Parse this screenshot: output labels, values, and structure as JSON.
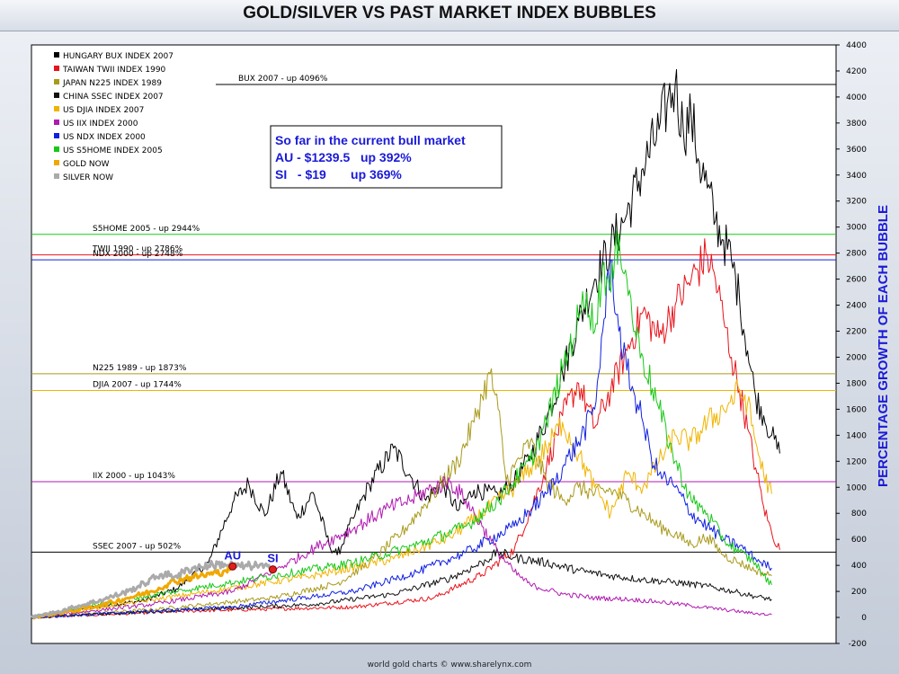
{
  "header": {
    "title": "GOLD/SILVER VS PAST MARKET INDEX BUBBLES"
  },
  "footer": {
    "credit": "world gold charts © www.sharelynx.com"
  },
  "info_box": {
    "line1": "So far in the current bull market",
    "line2": "AU - $1239.5   up 392%",
    "line3": "SI   - $19       up 369%"
  },
  "colors": {
    "hungary": "#000000",
    "taiwan": "#e8141c",
    "japan": "#a89a1c",
    "china": "#111111",
    "djia": "#f0b400",
    "iix": "#b01ab0",
    "ndx": "#1020e0",
    "s5home": "#18c818",
    "gold": "#f0a800",
    "silver": "#aaaaaa",
    "ylabel": "#1a1ad8",
    "markers": "#e02020"
  },
  "chart_data": {
    "type": "line",
    "title": "GOLD/SILVER VS PAST MARKET INDEX BUBBLES",
    "ylabel": "PERCENTAGE GROWTH OF EACH BUBBLE",
    "xlabel": "",
    "ylim": [
      -200,
      4400
    ],
    "yticks": [
      -200,
      0,
      200,
      400,
      600,
      800,
      1000,
      1200,
      1400,
      1600,
      1800,
      2000,
      2200,
      2400,
      2600,
      2800,
      3000,
      3200,
      3400,
      3600,
      3800,
      4000,
      4200,
      4400
    ],
    "x_range": [
      0,
      100
    ],
    "grid": false,
    "legend_position": "top-left",
    "legend": [
      {
        "label": "HUNGARY BUX INDEX 2007",
        "color": "#000000"
      },
      {
        "label": "TAIWAN TWII INDEX 1990",
        "color": "#e8141c"
      },
      {
        "label": "JAPAN N225 INDEX 1989",
        "color": "#a89a1c"
      },
      {
        "label": "CHINA SSEC INDEX 2007",
        "color": "#111111"
      },
      {
        "label": "US DJIA INDEX 2007",
        "color": "#f0b400"
      },
      {
        "label": "US IIX INDEX 2000",
        "color": "#b01ab0"
      },
      {
        "label": "US NDX INDEX 2000",
        "color": "#1020e0"
      },
      {
        "label": "US S5HOME INDEX 2005",
        "color": "#18c818"
      },
      {
        "label": "GOLD NOW",
        "color": "#f0a800"
      },
      {
        "label": "SILVER NOW",
        "color": "#aaaaaa"
      }
    ],
    "reference_lines": [
      {
        "label": "BUX 2007 - up 4096%",
        "value": 4096,
        "color": "#000000"
      },
      {
        "label": "S5HOME 2005 - up 2944%",
        "value": 2944,
        "color": "#18c818"
      },
      {
        "label": "TWII 1990 - up 2786%",
        "value": 2786,
        "color": "#e8141c"
      },
      {
        "label": "NDX 2000 - up 2748%",
        "value": 2748,
        "color": "#1020e0"
      },
      {
        "label": "N225 1989 - up 1873%",
        "value": 1873,
        "color": "#a89a1c"
      },
      {
        "label": "DJIA 2007 - up 1744%",
        "value": 1744,
        "color": "#f0b400"
      },
      {
        "label": "IIX 2000 - up 1043%",
        "value": 1043,
        "color": "#b01ab0"
      },
      {
        "label": "SSEC 2007 - up 502%",
        "value": 502,
        "color": "#000000"
      }
    ],
    "series": [
      {
        "name": "HUNGARY BUX INDEX 2007",
        "color": "#000000",
        "points": [
          [
            0,
            0
          ],
          [
            8,
            80
          ],
          [
            14,
            130
          ],
          [
            18,
            220
          ],
          [
            22,
            420
          ],
          [
            25,
            880
          ],
          [
            27,
            1030
          ],
          [
            29,
            780
          ],
          [
            31,
            1120
          ],
          [
            33,
            760
          ],
          [
            35,
            960
          ],
          [
            37,
            560
          ],
          [
            38,
            480
          ],
          [
            40,
            760
          ],
          [
            42,
            1020
          ],
          [
            45,
            1300
          ],
          [
            47,
            1100
          ],
          [
            49,
            900
          ],
          [
            51,
            1040
          ],
          [
            53,
            820
          ],
          [
            55,
            980
          ],
          [
            58,
            940
          ],
          [
            60,
            1040
          ],
          [
            62,
            1240
          ],
          [
            64,
            1520
          ],
          [
            66,
            1880
          ],
          [
            68,
            2280
          ],
          [
            70,
            2600
          ],
          [
            72,
            2850
          ],
          [
            74,
            3100
          ],
          [
            76,
            3450
          ],
          [
            78,
            3750
          ],
          [
            79,
            3950
          ],
          [
            80,
            4096
          ],
          [
            81,
            3750
          ],
          [
            82,
            3850
          ],
          [
            83,
            3500
          ],
          [
            84,
            3300
          ],
          [
            85,
            3050
          ],
          [
            86,
            2900
          ],
          [
            87,
            2750
          ],
          [
            88,
            2450
          ],
          [
            89,
            2050
          ],
          [
            90,
            1700
          ],
          [
            91,
            1550
          ],
          [
            92,
            1400
          ],
          [
            93,
            1260
          ]
        ]
      },
      {
        "name": "TAIWAN TWII INDEX 1990",
        "color": "#e8141c",
        "points": [
          [
            0,
            0
          ],
          [
            20,
            50
          ],
          [
            40,
            80
          ],
          [
            50,
            150
          ],
          [
            56,
            330
          ],
          [
            60,
            520
          ],
          [
            62,
            820
          ],
          [
            64,
            1150
          ],
          [
            66,
            1550
          ],
          [
            68,
            1800
          ],
          [
            70,
            1460
          ],
          [
            72,
            1750
          ],
          [
            74,
            2050
          ],
          [
            76,
            2350
          ],
          [
            78,
            2150
          ],
          [
            80,
            2400
          ],
          [
            82,
            2600
          ],
          [
            84,
            2786
          ],
          [
            85,
            2600
          ],
          [
            86,
            2300
          ],
          [
            87,
            2000
          ],
          [
            88,
            1750
          ],
          [
            89,
            1450
          ],
          [
            90,
            1150
          ],
          [
            91,
            850
          ],
          [
            92,
            650
          ],
          [
            93,
            520
          ]
        ]
      },
      {
        "name": "JAPAN N225 INDEX 1989",
        "color": "#a89a1c",
        "points": [
          [
            0,
            0
          ],
          [
            15,
            60
          ],
          [
            30,
            150
          ],
          [
            38,
            260
          ],
          [
            42,
            420
          ],
          [
            46,
            650
          ],
          [
            50,
            950
          ],
          [
            53,
            1200
          ],
          [
            55,
            1500
          ],
          [
            56,
            1700
          ],
          [
            57,
            1873
          ],
          [
            58,
            1600
          ],
          [
            59,
            1050
          ],
          [
            60,
            1150
          ],
          [
            62,
            1350
          ],
          [
            64,
            1050
          ],
          [
            66,
            900
          ],
          [
            68,
            1000
          ],
          [
            70,
            950
          ],
          [
            72,
            980
          ],
          [
            74,
            900
          ],
          [
            76,
            800
          ],
          [
            78,
            700
          ],
          [
            80,
            640
          ],
          [
            82,
            560
          ],
          [
            84,
            620
          ],
          [
            86,
            480
          ],
          [
            88,
            420
          ],
          [
            90,
            360
          ],
          [
            92,
            320
          ]
        ]
      },
      {
        "name": "CHINA SSEC INDEX 2007",
        "color": "#111111",
        "points": [
          [
            0,
            0
          ],
          [
            20,
            60
          ],
          [
            35,
            100
          ],
          [
            45,
            180
          ],
          [
            52,
            300
          ],
          [
            56,
            420
          ],
          [
            58,
            502
          ],
          [
            60,
            460
          ],
          [
            64,
            420
          ],
          [
            68,
            360
          ],
          [
            72,
            320
          ],
          [
            76,
            290
          ],
          [
            80,
            270
          ],
          [
            84,
            240
          ],
          [
            88,
            190
          ],
          [
            90,
            160
          ],
          [
            92,
            140
          ]
        ]
      },
      {
        "name": "US DJIA INDEX 2007",
        "color": "#f0b400",
        "points": [
          [
            0,
            0
          ],
          [
            20,
            180
          ],
          [
            35,
            320
          ],
          [
            45,
            450
          ],
          [
            52,
            620
          ],
          [
            56,
            800
          ],
          [
            60,
            1000
          ],
          [
            62,
            1150
          ],
          [
            64,
            1300
          ],
          [
            66,
            1500
          ],
          [
            68,
            1250
          ],
          [
            70,
            1000
          ],
          [
            72,
            800
          ],
          [
            74,
            1100
          ],
          [
            76,
            1000
          ],
          [
            78,
            1200
          ],
          [
            80,
            1400
          ],
          [
            82,
            1350
          ],
          [
            84,
            1500
          ],
          [
            86,
            1600
          ],
          [
            88,
            1744
          ],
          [
            89,
            1650
          ],
          [
            90,
            1350
          ],
          [
            91,
            1100
          ],
          [
            92,
            950
          ]
        ]
      },
      {
        "name": "US IIX INDEX 2000",
        "color": "#b01ab0",
        "points": [
          [
            0,
            0
          ],
          [
            15,
            100
          ],
          [
            25,
            200
          ],
          [
            32,
            420
          ],
          [
            36,
            560
          ],
          [
            40,
            680
          ],
          [
            44,
            830
          ],
          [
            47,
            900
          ],
          [
            50,
            1000
          ],
          [
            52,
            1043
          ],
          [
            54,
            900
          ],
          [
            56,
            700
          ],
          [
            58,
            500
          ],
          [
            60,
            350
          ],
          [
            62,
            250
          ],
          [
            66,
            180
          ],
          [
            70,
            150
          ],
          [
            74,
            140
          ],
          [
            78,
            120
          ],
          [
            82,
            90
          ],
          [
            86,
            60
          ],
          [
            90,
            30
          ],
          [
            92,
            20
          ]
        ]
      },
      {
        "name": "US NDX INDEX 2000",
        "color": "#1020e0",
        "points": [
          [
            0,
            0
          ],
          [
            25,
            80
          ],
          [
            40,
            200
          ],
          [
            48,
            350
          ],
          [
            54,
            500
          ],
          [
            60,
            700
          ],
          [
            64,
            950
          ],
          [
            66,
            1150
          ],
          [
            68,
            1350
          ],
          [
            70,
            1600
          ],
          [
            71,
            2200
          ],
          [
            72,
            2748
          ],
          [
            73,
            2200
          ],
          [
            74,
            1900
          ],
          [
            75,
            1700
          ],
          [
            76,
            1500
          ],
          [
            77,
            1250
          ],
          [
            78,
            1100
          ],
          [
            80,
            1000
          ],
          [
            82,
            800
          ],
          [
            84,
            700
          ],
          [
            86,
            600
          ],
          [
            88,
            550
          ],
          [
            90,
            450
          ],
          [
            92,
            380
          ]
        ]
      },
      {
        "name": "US S5HOME INDEX 2005",
        "color": "#18c818",
        "points": [
          [
            0,
            0
          ],
          [
            10,
            120
          ],
          [
            20,
            220
          ],
          [
            30,
            320
          ],
          [
            40,
            420
          ],
          [
            48,
            560
          ],
          [
            54,
            700
          ],
          [
            58,
            900
          ],
          [
            62,
            1200
          ],
          [
            64,
            1500
          ],
          [
            66,
            1900
          ],
          [
            68,
            2300
          ],
          [
            69,
            2500
          ],
          [
            70,
            2200
          ],
          [
            71,
            2700
          ],
          [
            72,
            2500
          ],
          [
            73,
            2944
          ],
          [
            74,
            2600
          ],
          [
            75,
            2200
          ],
          [
            76,
            2000
          ],
          [
            78,
            1600
          ],
          [
            80,
            1200
          ],
          [
            82,
            900
          ],
          [
            84,
            800
          ],
          [
            86,
            600
          ],
          [
            88,
            500
          ],
          [
            90,
            420
          ],
          [
            91,
            320
          ],
          [
            92,
            250
          ]
        ]
      },
      {
        "name": "GOLD NOW",
        "color": "#f0a800",
        "points": [
          [
            0,
            0
          ],
          [
            3,
            30
          ],
          [
            6,
            60
          ],
          [
            9,
            100
          ],
          [
            12,
            150
          ],
          [
            15,
            200
          ],
          [
            17,
            260
          ],
          [
            19,
            300
          ],
          [
            21,
            320
          ],
          [
            23,
            340
          ],
          [
            24,
            360
          ],
          [
            25,
            392
          ]
        ]
      },
      {
        "name": "SILVER NOW",
        "color": "#aaaaaa",
        "points": [
          [
            0,
            0
          ],
          [
            3,
            40
          ],
          [
            6,
            90
          ],
          [
            9,
            140
          ],
          [
            12,
            200
          ],
          [
            14,
            260
          ],
          [
            16,
            330
          ],
          [
            18,
            320
          ],
          [
            20,
            380
          ],
          [
            22,
            400
          ],
          [
            24,
            410
          ],
          [
            26,
            390
          ],
          [
            28,
            400
          ],
          [
            30,
            369
          ]
        ]
      }
    ],
    "annotations": [
      {
        "text": "AU",
        "x": 25,
        "y": 392
      },
      {
        "text": "SI",
        "x": 30,
        "y": 369
      }
    ]
  }
}
